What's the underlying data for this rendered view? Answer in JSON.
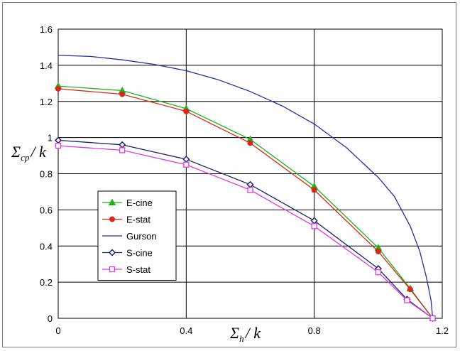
{
  "chart_data": {
    "type": "line",
    "xlim": [
      0,
      1.2
    ],
    "ylim": [
      0,
      1.6
    ],
    "x_ticks": [
      "0",
      "0.4",
      "0.8",
      "1.2"
    ],
    "y_ticks": [
      "0",
      "0.2",
      "0.4",
      "0.6",
      "0.8",
      "1",
      "1.2",
      "1.4",
      "1.6"
    ],
    "xlabel": {
      "symbol": "Σ",
      "sub": "h",
      "rest": "/ k"
    },
    "ylabel": {
      "symbol": "Σ",
      "sub": "cp",
      "rest": "/ k"
    },
    "grid": true,
    "legend_position": "lower-left",
    "series": [
      {
        "name": "E-cine",
        "color": "#22b022",
        "marker": "triangle",
        "points": [
          [
            0,
            1.285
          ],
          [
            0.2,
            1.26
          ],
          [
            0.4,
            1.16
          ],
          [
            0.6,
            0.99
          ],
          [
            0.8,
            0.73
          ],
          [
            1.0,
            0.39
          ],
          [
            1.1,
            0.165
          ],
          [
            1.17,
            0.0
          ]
        ]
      },
      {
        "name": "E-stat",
        "color": "#d42a1a",
        "marker": "circle",
        "points": [
          [
            0,
            1.27
          ],
          [
            0.2,
            1.24
          ],
          [
            0.4,
            1.145
          ],
          [
            0.6,
            0.97
          ],
          [
            0.8,
            0.71
          ],
          [
            1.0,
            0.37
          ],
          [
            1.1,
            0.16
          ],
          [
            1.17,
            0.0
          ]
        ]
      },
      {
        "name": "Gurson",
        "color": "#2a2aa8",
        "marker": "none",
        "points": [
          [
            0,
            1.455
          ],
          [
            0.1,
            1.449
          ],
          [
            0.2,
            1.43
          ],
          [
            0.3,
            1.405
          ],
          [
            0.4,
            1.37
          ],
          [
            0.5,
            1.32
          ],
          [
            0.6,
            1.255
          ],
          [
            0.7,
            1.175
          ],
          [
            0.8,
            1.075
          ],
          [
            0.9,
            0.945
          ],
          [
            1.0,
            0.78
          ],
          [
            1.05,
            0.675
          ],
          [
            1.1,
            0.51
          ],
          [
            1.13,
            0.37
          ],
          [
            1.15,
            0.23
          ],
          [
            1.165,
            0.1
          ],
          [
            1.17,
            0.0
          ]
        ]
      },
      {
        "name": "S-cine",
        "color": "#1e1e6e",
        "marker": "diamond",
        "points": [
          [
            0,
            0.985
          ],
          [
            0.2,
            0.96
          ],
          [
            0.4,
            0.88
          ],
          [
            0.6,
            0.74
          ],
          [
            0.8,
            0.54
          ],
          [
            1.0,
            0.275
          ],
          [
            1.09,
            0.105
          ],
          [
            1.17,
            0.0
          ]
        ]
      },
      {
        "name": "S-stat",
        "color": "#e03ae0",
        "marker": "square",
        "points": [
          [
            0,
            0.955
          ],
          [
            0.2,
            0.93
          ],
          [
            0.4,
            0.85
          ],
          [
            0.6,
            0.71
          ],
          [
            0.8,
            0.51
          ],
          [
            1.0,
            0.255
          ],
          [
            1.09,
            0.1
          ],
          [
            1.17,
            0.0
          ]
        ]
      }
    ]
  }
}
